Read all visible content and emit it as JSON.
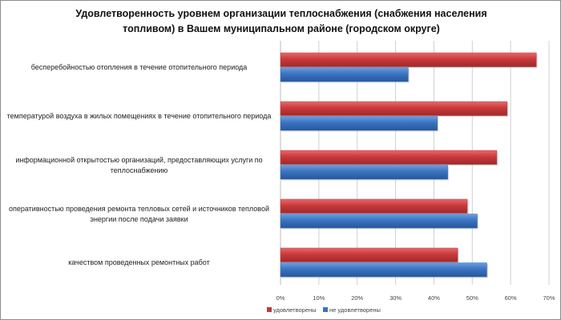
{
  "chart_data": {
    "type": "bar",
    "orientation": "horizontal",
    "title": "Удовлетворенность уровнем организации теплоснабжения (снабжения населения топливом) в Вашем муниципальном районе (городском округе)",
    "categories": [
      "бесперебойностью  отопления в течение отопительного периода",
      "температурой воздуха в жилых помещениях в течение отопительного периода",
      "информационной открытостью организаций, предоставляющих услуги по теплоснабжению",
      "оперативностью проведения ремонта тепловых сетей и источников тепловой энергии после подачи заявки",
      "качеством проведенных ремонтных работ"
    ],
    "series": [
      {
        "name": "удовлетворены",
        "color": "#c0393b",
        "values": [
          66.7,
          59.1,
          56.4,
          48.7,
          46.2
        ]
      },
      {
        "name": "не удовлетворены",
        "color": "#3a73c0",
        "values": [
          33.3,
          40.9,
          43.6,
          51.3,
          53.8
        ]
      }
    ],
    "xlim": [
      0,
      70
    ],
    "xticks": [
      "0%",
      "10%",
      "20%",
      "30%",
      "40%",
      "50%",
      "60%",
      "70%"
    ],
    "grid": true,
    "legend": "bottom-left",
    "xlabel": "",
    "ylabel": ""
  }
}
